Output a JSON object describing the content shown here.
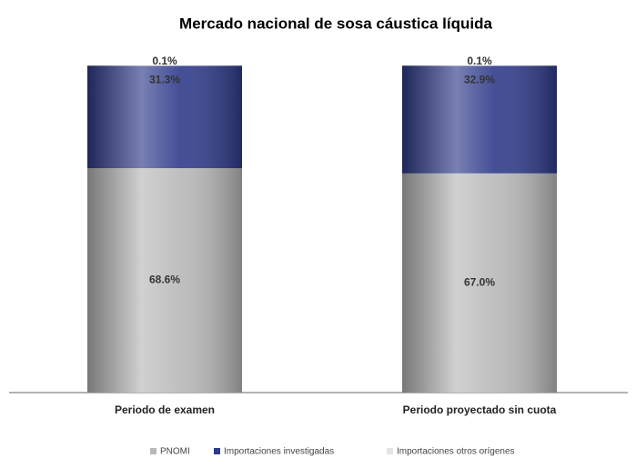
{
  "chart_data": {
    "type": "stacked-bar",
    "title": "Mercado nacional de sosa cáustica líquida",
    "categories": [
      "Periodo de examen",
      "Periodo proyectado sin cuota"
    ],
    "series": [
      {
        "name": "PNOMI",
        "color": "#b8b8b8",
        "values": [
          68.6,
          67.0
        ],
        "value_labels": [
          "68.6%",
          "67.0%"
        ]
      },
      {
        "name": "Importaciones  investigadas",
        "color": "#2f3b8a",
        "values": [
          31.3,
          32.9
        ],
        "value_labels": [
          "31.3%",
          "32.9%"
        ]
      },
      {
        "name": "Importaciones otros orígenes",
        "color": "#e4e4e4",
        "values": [
          0.1,
          0.1
        ],
        "value_labels": [
          "0.1%",
          "0.1%"
        ]
      }
    ],
    "ylim": [
      0,
      100
    ],
    "legend": "bottom"
  }
}
